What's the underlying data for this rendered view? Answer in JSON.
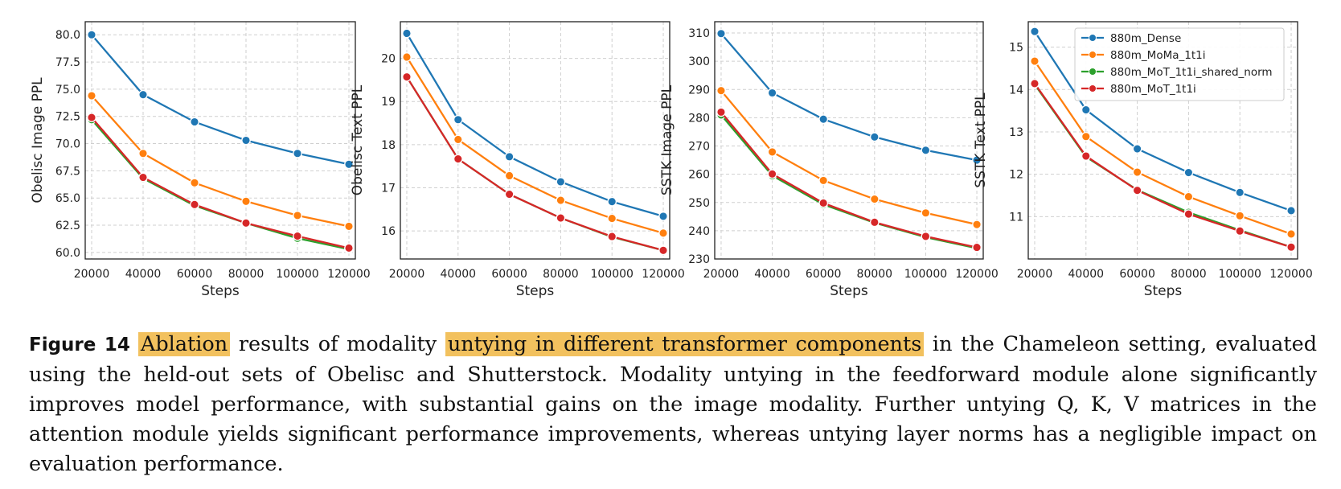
{
  "chart_data": [
    {
      "type": "line",
      "ylabel": "Obelisc Image PPL",
      "xlabel": "Steps",
      "x": [
        20000,
        40000,
        60000,
        80000,
        100000,
        120000
      ],
      "xticks": [
        "20000",
        "40000",
        "60000",
        "80000",
        "100000",
        "120000"
      ],
      "ylim": [
        59.4,
        81.2
      ],
      "yticks": [
        "60.0",
        "62.5",
        "65.0",
        "67.5",
        "70.0",
        "72.5",
        "75.0",
        "77.5",
        "80.0"
      ],
      "grid": true,
      "series": [
        {
          "name": "880m_Dense",
          "color": "#1f77b4",
          "values": [
            80.0,
            74.5,
            72.0,
            70.3,
            69.1,
            68.1
          ]
        },
        {
          "name": "880m_MoMa_1t1i",
          "color": "#ff7f0e",
          "values": [
            74.4,
            69.1,
            66.4,
            64.7,
            63.4,
            62.4
          ]
        },
        {
          "name": "880m_MoT_1t1i_shared_norm",
          "color": "#2ca02c",
          "values": [
            72.2,
            66.8,
            64.3,
            62.7,
            61.3,
            60.3
          ]
        },
        {
          "name": "880m_MoT_1t1i",
          "color": "#d62728",
          "values": [
            72.4,
            66.9,
            64.4,
            62.7,
            61.5,
            60.4
          ]
        }
      ]
    },
    {
      "type": "line",
      "ylabel": "Obelisc Text PPL",
      "xlabel": "Steps",
      "x": [
        20000,
        40000,
        60000,
        80000,
        100000,
        120000
      ],
      "xticks": [
        "20000",
        "40000",
        "60000",
        "80000",
        "100000",
        "120000"
      ],
      "ylim": [
        15.35,
        20.85
      ],
      "yticks": [
        "16",
        "17",
        "18",
        "19",
        "20"
      ],
      "grid": true,
      "series": [
        {
          "name": "880m_Dense",
          "color": "#1f77b4",
          "values": [
            20.58,
            18.58,
            17.72,
            17.14,
            16.68,
            16.34
          ]
        },
        {
          "name": "880m_MoMa_1t1i",
          "color": "#ff7f0e",
          "values": [
            20.03,
            18.12,
            17.28,
            16.71,
            16.29,
            15.95
          ]
        },
        {
          "name": "880m_MoT_1t1i_shared_norm",
          "color": "#2ca02c",
          "values": [
            19.57,
            17.67,
            16.85,
            16.3,
            15.86,
            15.55
          ]
        },
        {
          "name": "880m_MoT_1t1i",
          "color": "#d62728",
          "values": [
            19.57,
            17.67,
            16.85,
            16.3,
            15.87,
            15.55
          ]
        }
      ]
    },
    {
      "type": "line",
      "ylabel": "SSTK Image PPL",
      "xlabel": "Steps",
      "x": [
        20000,
        40000,
        60000,
        80000,
        100000,
        120000
      ],
      "xticks": [
        "20000",
        "40000",
        "60000",
        "80000",
        "100000",
        "120000"
      ],
      "ylim": [
        230,
        314
      ],
      "yticks": [
        "230",
        "240",
        "250",
        "260",
        "270",
        "280",
        "290",
        "300",
        "310"
      ],
      "grid": true,
      "series": [
        {
          "name": "880m_Dense",
          "color": "#1f77b4",
          "values": [
            309.8,
            288.8,
            279.5,
            273.2,
            268.5,
            265.0
          ]
        },
        {
          "name": "880m_MoMa_1t1i",
          "color": "#ff7f0e",
          "values": [
            289.6,
            267.9,
            257.8,
            251.2,
            246.3,
            242.2
          ]
        },
        {
          "name": "880m_MoT_1t1i_shared_norm",
          "color": "#2ca02c",
          "values": [
            281.0,
            259.5,
            249.3,
            242.8,
            237.7,
            233.8
          ]
        },
        {
          "name": "880m_MoT_1t1i",
          "color": "#d62728",
          "values": [
            282.0,
            260.1,
            249.8,
            243.0,
            238.0,
            234.1
          ]
        }
      ]
    },
    {
      "type": "line",
      "ylabel": "SSTK Text PPL",
      "xlabel": "Steps",
      "x": [
        20000,
        40000,
        60000,
        80000,
        100000,
        120000
      ],
      "xticks": [
        "20000",
        "40000",
        "60000",
        "80000",
        "100000",
        "120000"
      ],
      "ylim": [
        10.0,
        15.6
      ],
      "yticks": [
        "11",
        "12",
        "13",
        "14",
        "15"
      ],
      "grid": true,
      "legend": "top-right",
      "series": [
        {
          "name": "880m_Dense",
          "color": "#1f77b4",
          "values": [
            15.37,
            13.52,
            12.6,
            12.04,
            11.57,
            11.14
          ]
        },
        {
          "name": "880m_MoMa_1t1i",
          "color": "#ff7f0e",
          "values": [
            14.67,
            12.89,
            12.05,
            11.47,
            11.02,
            10.59
          ]
        },
        {
          "name": "880m_MoT_1t1i_shared_norm",
          "color": "#2ca02c",
          "values": [
            14.12,
            12.41,
            11.63,
            11.1,
            10.68,
            10.28
          ]
        },
        {
          "name": "880m_MoT_1t1i",
          "color": "#d62728",
          "values": [
            14.14,
            12.43,
            11.62,
            11.06,
            10.66,
            10.28
          ]
        }
      ]
    }
  ],
  "caption": {
    "label": "Figure 14",
    "hl1": "Ablation",
    "t1": " results of modality ",
    "hl2": "untying in different transformer components",
    "t2": " in the Chameleon setting, evaluated using the held-out sets of Obelisc and Shutterstock. Modality untying in the feedforward module alone significantly improves model performance, with substantial gains on the image modality. Further untying Q, K, V matrices in the attention module yields significant performance improvements, whereas untying layer norms has a negligible impact on evaluation performance.",
    "highlight_color": "#f2c15e"
  }
}
